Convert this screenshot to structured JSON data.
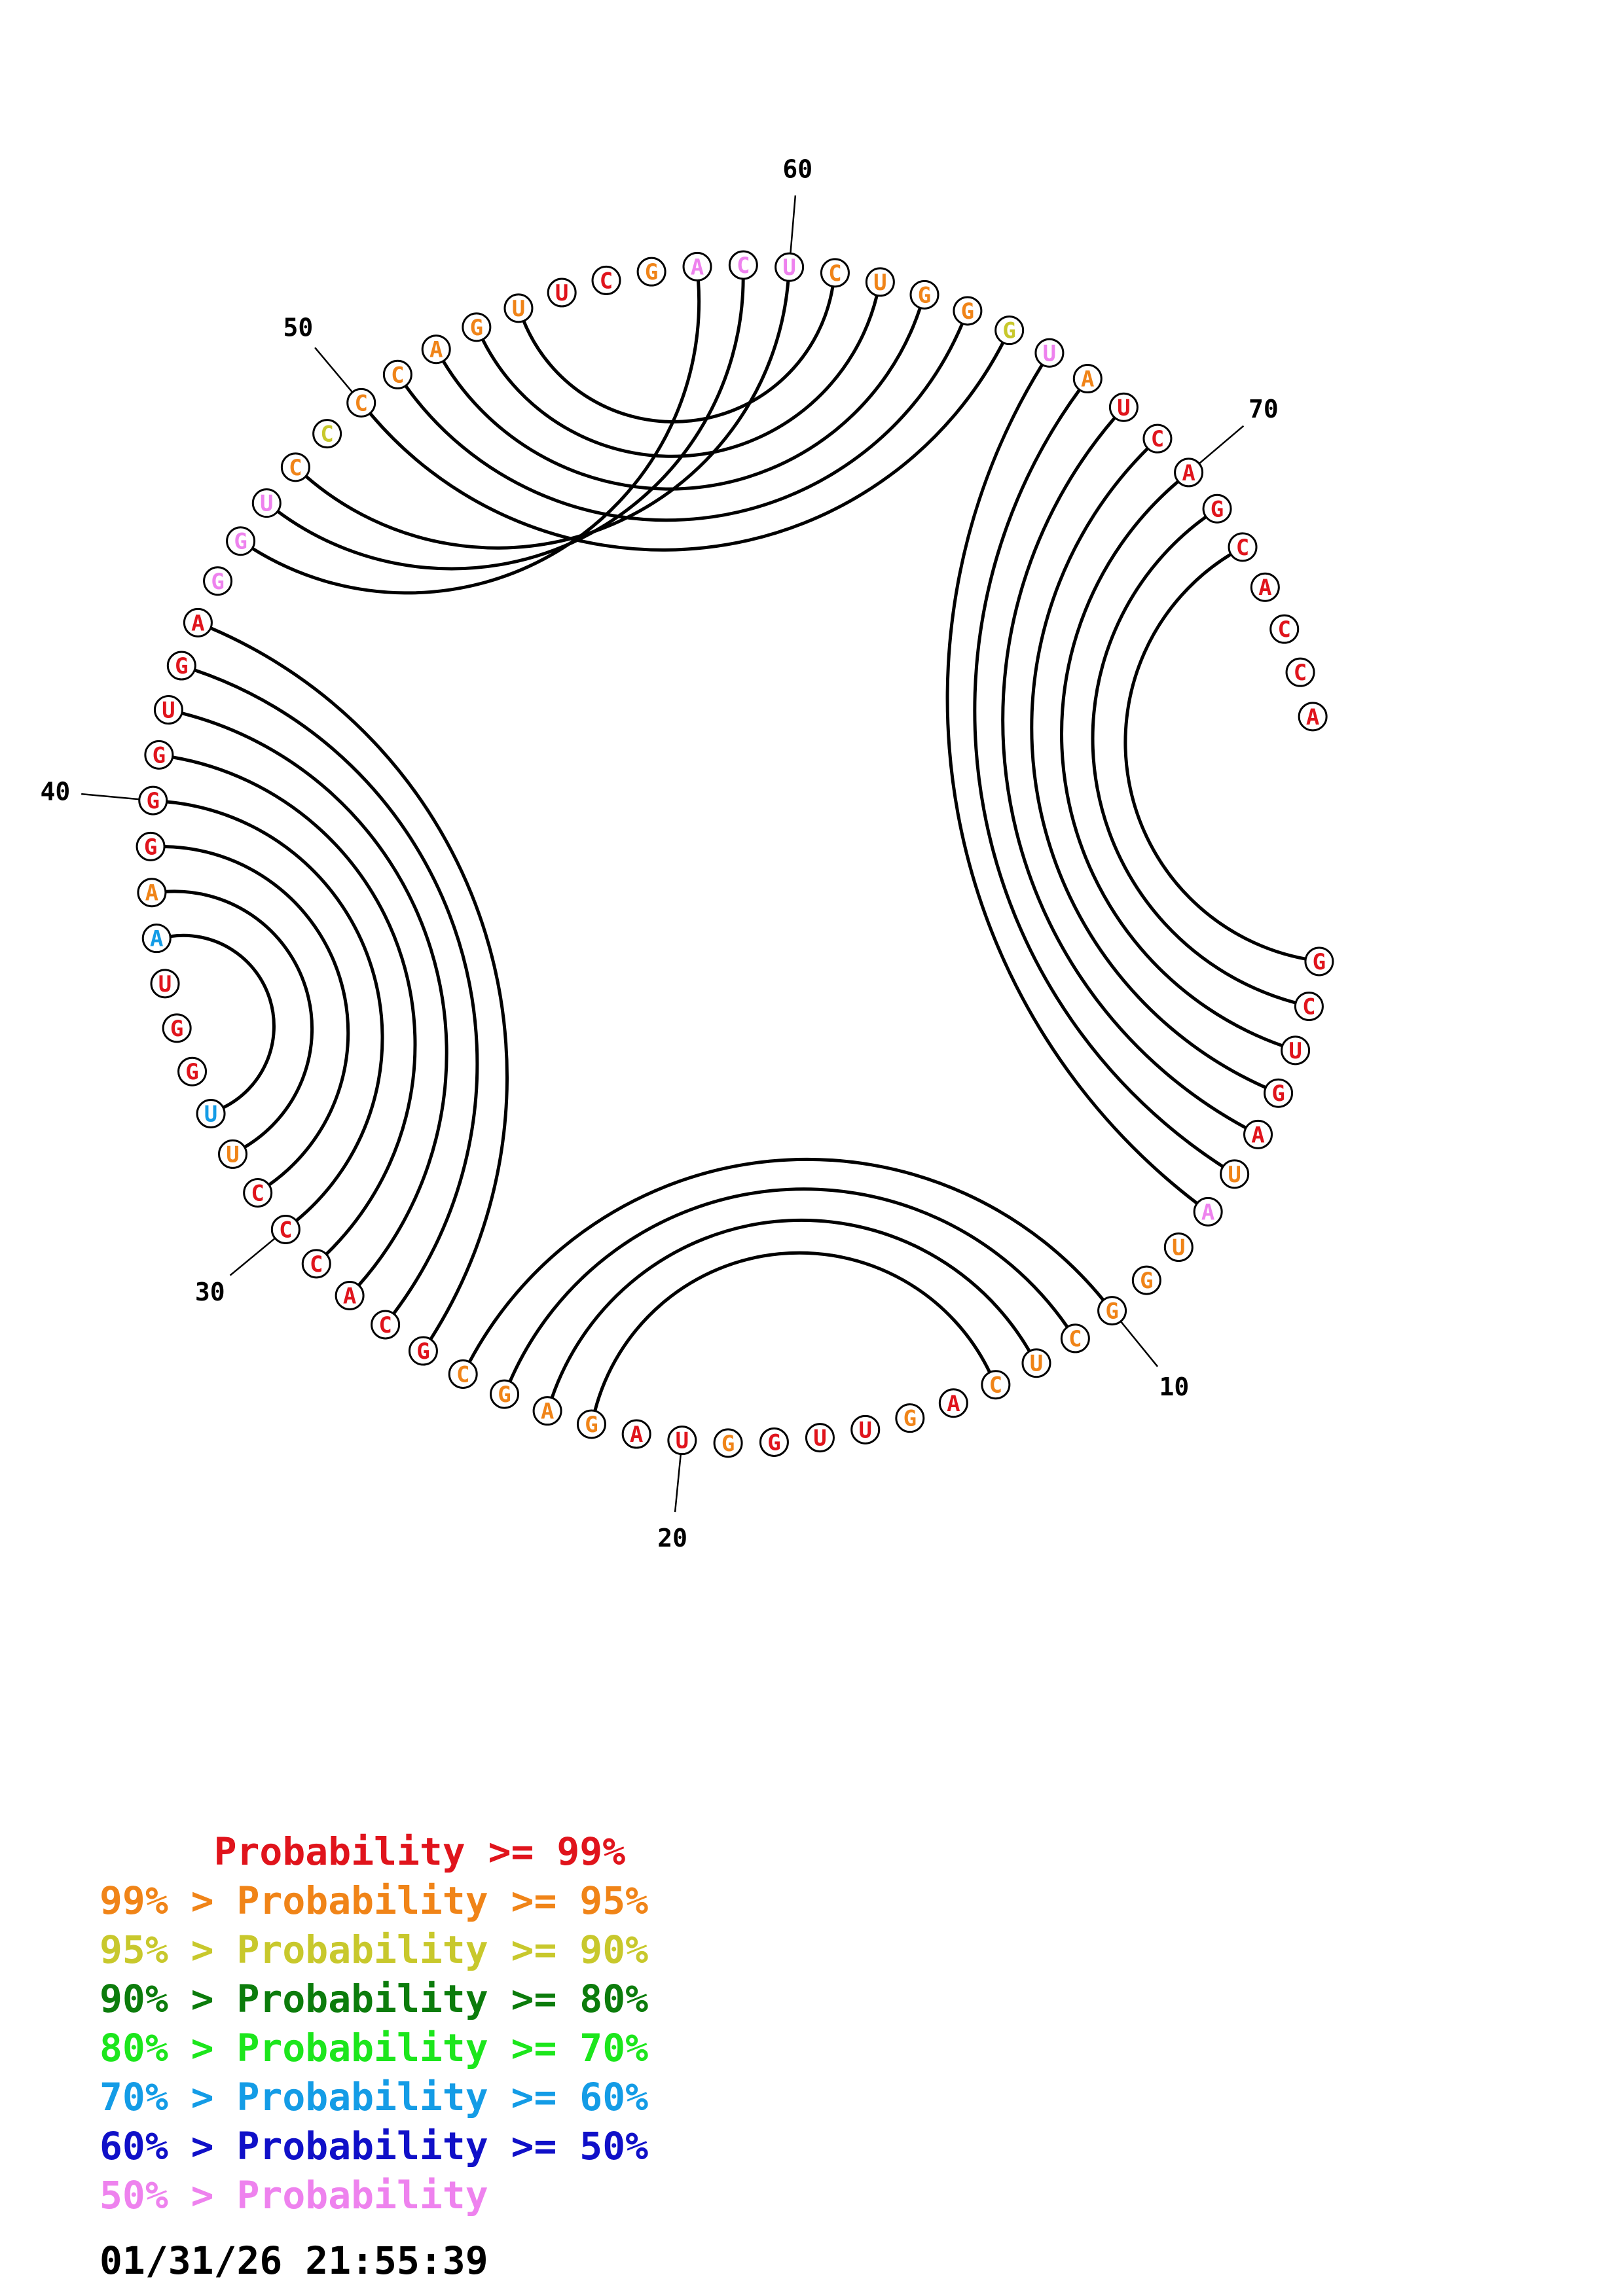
{
  "colors": {
    "c99": "#e0141c",
    "c95": "#f08418",
    "c90": "#c8c82c",
    "c80": "#0c7c0c",
    "c70": "#1ce61c",
    "c60": "#149ce6",
    "c50": "#1010c8",
    "clow": "#ee82ee",
    "arc": "#000000"
  },
  "sequence": [
    {
      "base": "G",
      "level": "c99"
    },
    {
      "base": "C",
      "level": "c99"
    },
    {
      "base": "U",
      "level": "c99"
    },
    {
      "base": "G",
      "level": "c99"
    },
    {
      "base": "A",
      "level": "c99"
    },
    {
      "base": "U",
      "level": "c95"
    },
    {
      "base": "A",
      "level": "clow"
    },
    {
      "base": "U",
      "level": "c95"
    },
    {
      "base": "G",
      "level": "c95"
    },
    {
      "base": "G",
      "level": "c95"
    },
    {
      "base": "C",
      "level": "c95"
    },
    {
      "base": "U",
      "level": "c95"
    },
    {
      "base": "C",
      "level": "c95"
    },
    {
      "base": "A",
      "level": "c99"
    },
    {
      "base": "G",
      "level": "c95"
    },
    {
      "base": "U",
      "level": "c99"
    },
    {
      "base": "U",
      "level": "c99"
    },
    {
      "base": "G",
      "level": "c99"
    },
    {
      "base": "G",
      "level": "c95"
    },
    {
      "base": "U",
      "level": "c99"
    },
    {
      "base": "A",
      "level": "c99"
    },
    {
      "base": "G",
      "level": "c95"
    },
    {
      "base": "A",
      "level": "c95"
    },
    {
      "base": "G",
      "level": "c95"
    },
    {
      "base": "C",
      "level": "c95"
    },
    {
      "base": "G",
      "level": "c99"
    },
    {
      "base": "C",
      "level": "c99"
    },
    {
      "base": "A",
      "level": "c99"
    },
    {
      "base": "C",
      "level": "c99"
    },
    {
      "base": "C",
      "level": "c99"
    },
    {
      "base": "C",
      "level": "c99"
    },
    {
      "base": "U",
      "level": "c95"
    },
    {
      "base": "U",
      "level": "c60"
    },
    {
      "base": "G",
      "level": "c99"
    },
    {
      "base": "G",
      "level": "c99"
    },
    {
      "base": "U",
      "level": "c99"
    },
    {
      "base": "A",
      "level": "c60"
    },
    {
      "base": "A",
      "level": "c95"
    },
    {
      "base": "G",
      "level": "c99"
    },
    {
      "base": "G",
      "level": "c99"
    },
    {
      "base": "G",
      "level": "c99"
    },
    {
      "base": "U",
      "level": "c99"
    },
    {
      "base": "G",
      "level": "c99"
    },
    {
      "base": "A",
      "level": "c99"
    },
    {
      "base": "G",
      "level": "clow"
    },
    {
      "base": "G",
      "level": "clow"
    },
    {
      "base": "U",
      "level": "clow"
    },
    {
      "base": "C",
      "level": "c95"
    },
    {
      "base": "C",
      "level": "c90"
    },
    {
      "base": "C",
      "level": "c95"
    },
    {
      "base": "C",
      "level": "c95"
    },
    {
      "base": "A",
      "level": "c95"
    },
    {
      "base": "G",
      "level": "c95"
    },
    {
      "base": "U",
      "level": "c95"
    },
    {
      "base": "U",
      "level": "c99"
    },
    {
      "base": "C",
      "level": "c99"
    },
    {
      "base": "G",
      "level": "c95"
    },
    {
      "base": "A",
      "level": "clow"
    },
    {
      "base": "C",
      "level": "clow"
    },
    {
      "base": "U",
      "level": "clow"
    },
    {
      "base": "C",
      "level": "c95"
    },
    {
      "base": "U",
      "level": "c95"
    },
    {
      "base": "G",
      "level": "c95"
    },
    {
      "base": "G",
      "level": "c95"
    },
    {
      "base": "G",
      "level": "c90"
    },
    {
      "base": "U",
      "level": "clow"
    },
    {
      "base": "A",
      "level": "c95"
    },
    {
      "base": "U",
      "level": "c99"
    },
    {
      "base": "C",
      "level": "c99"
    },
    {
      "base": "A",
      "level": "c99"
    },
    {
      "base": "G",
      "level": "c99"
    },
    {
      "base": "C",
      "level": "c99"
    },
    {
      "base": "A",
      "level": "c99"
    },
    {
      "base": "C",
      "level": "c99"
    },
    {
      "base": "C",
      "level": "c99"
    },
    {
      "base": "A",
      "level": "c99"
    }
  ],
  "pairs": [
    [
      1,
      72
    ],
    [
      2,
      71
    ],
    [
      3,
      70
    ],
    [
      4,
      69
    ],
    [
      5,
      68
    ],
    [
      6,
      67
    ],
    [
      7,
      66
    ],
    [
      10,
      25
    ],
    [
      11,
      24
    ],
    [
      12,
      23
    ],
    [
      13,
      22
    ],
    [
      26,
      44
    ],
    [
      27,
      43
    ],
    [
      28,
      42
    ],
    [
      29,
      41
    ],
    [
      30,
      40
    ],
    [
      31,
      39
    ],
    [
      32,
      38
    ],
    [
      33,
      37
    ],
    [
      46,
      58
    ],
    [
      47,
      59
    ],
    [
      48,
      60
    ],
    [
      50,
      65
    ],
    [
      51,
      64
    ],
    [
      52,
      63
    ],
    [
      53,
      62
    ],
    [
      54,
      61
    ]
  ],
  "position_labels": [
    {
      "index": 10,
      "text": "10"
    },
    {
      "index": 20,
      "text": "20"
    },
    {
      "index": 30,
      "text": "30"
    },
    {
      "index": 40,
      "text": "40"
    },
    {
      "index": 50,
      "text": "50"
    },
    {
      "index": 60,
      "text": "60"
    },
    {
      "index": 70,
      "text": "70"
    }
  ],
  "legend": [
    {
      "text": "     Probability >= 99%",
      "level": "c99"
    },
    {
      "text": "99% > Probability >= 95%",
      "level": "c95"
    },
    {
      "text": "95% > Probability >= 90%",
      "level": "c90"
    },
    {
      "text": "90% > Probability >= 80%",
      "level": "c80"
    },
    {
      "text": "80% > Probability >= 70%",
      "level": "c70"
    },
    {
      "text": "70% > Probability >= 60%",
      "level": "c60"
    },
    {
      "text": "60% > Probability >= 50%",
      "level": "c50"
    },
    {
      "text": "50% > Probability",
      "level": "clow"
    }
  ],
  "timestamp": "01/31/26 21:55:39"
}
